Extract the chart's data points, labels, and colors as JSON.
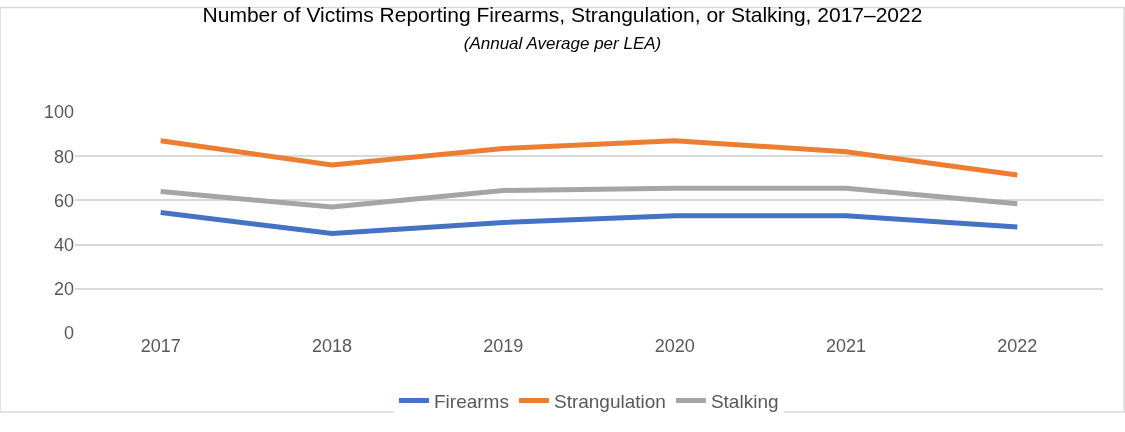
{
  "chart_data": {
    "type": "line",
    "title": "Number of Victims Reporting Firearms, Strangulation, or Stalking, 2017–2022",
    "subtitle": "(Annual Average per LEA)",
    "categories": [
      "2017",
      "2018",
      "2019",
      "2020",
      "2021",
      "2022"
    ],
    "series": [
      {
        "name": "Firearms",
        "color": "#4472c4",
        "values": [
          54.5,
          45,
          50,
          53,
          53,
          48
        ]
      },
      {
        "name": "Strangulation",
        "color": "#ed7d31",
        "values": [
          87,
          76,
          83.5,
          87,
          82,
          71.5
        ]
      },
      {
        "name": "Stalking",
        "color": "#a5a5a5",
        "values": [
          64,
          57,
          64.5,
          65.5,
          65.5,
          58.5
        ]
      }
    ],
    "ylim": [
      0,
      100
    ],
    "yticks": [
      0,
      20,
      40,
      60,
      80,
      100
    ],
    "grid": "y",
    "legend": "bottom",
    "marker": "none",
    "line_style": "solid"
  }
}
